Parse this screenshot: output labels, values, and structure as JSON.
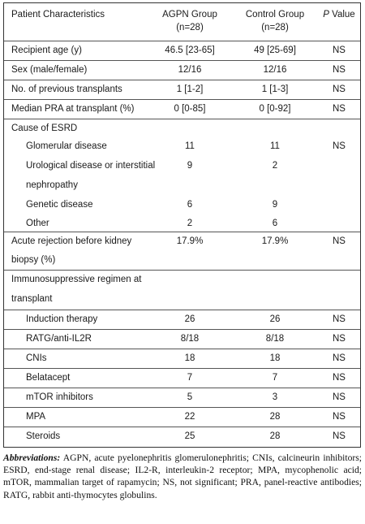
{
  "header": {
    "col0": "Patient Characteristics",
    "col1_line1": "AGPN Group",
    "col1_line2": "(n=28)",
    "col2_line1": "Control Group",
    "col2_line2": "(n=28)",
    "col3_italic": "P",
    "col3_rest": " Value"
  },
  "rows": [
    {
      "c0": "Recipient age (y)",
      "c1": "46.5 [23-65]",
      "c2": "49 [25-69]",
      "c3": "NS"
    },
    {
      "c0": "Sex (male/female)",
      "c1": "12/16",
      "c2": "12/16",
      "c3": "NS"
    },
    {
      "c0": "No. of previous transplants",
      "c1": "1 [1-2]",
      "c2": "1 [1-3]",
      "c3": "NS"
    },
    {
      "c0": "Median PRA at transplant (%)",
      "c1": "0 [0-85]",
      "c2": "0 [0-92]",
      "c3": "NS"
    },
    {
      "c0": "Cause of ESRD",
      "c1": "",
      "c2": "",
      "c3": ""
    },
    {
      "c0": "Glomerular disease",
      "c1": "11",
      "c2": "11",
      "c3": "NS"
    },
    {
      "c0a": "Urological disease or interstitial",
      "c0b": "nephropathy",
      "c1": "9",
      "c2": "2",
      "c3": ""
    },
    {
      "c0": "Genetic disease",
      "c1": "6",
      "c2": "9",
      "c3": ""
    },
    {
      "c0": "Other",
      "c1": "2",
      "c2": "6",
      "c3": ""
    },
    {
      "c0a": "Acute rejection before kidney",
      "c0b": "biopsy (%)",
      "c1": "17.9%",
      "c2": "17.9%",
      "c3": "NS"
    },
    {
      "c0a": "Immunosuppressive regimen at",
      "c0b": "transplant",
      "c1": "",
      "c2": "",
      "c3": ""
    },
    {
      "c0": "Induction therapy",
      "c1": "26",
      "c2": "26",
      "c3": "NS"
    },
    {
      "c0": "RATG/anti-IL2R",
      "c1": "8/18",
      "c2": "8/18",
      "c3": "NS"
    },
    {
      "c0": "CNIs",
      "c1": "18",
      "c2": "18",
      "c3": "NS"
    },
    {
      "c0": "Belatacept",
      "c1": "7",
      "c2": "7",
      "c3": "NS"
    },
    {
      "c0": "mTOR inhibitors",
      "c1": "5",
      "c2": "3",
      "c3": "NS"
    },
    {
      "c0": "MPA",
      "c1": "22",
      "c2": "28",
      "c3": "NS"
    },
    {
      "c0": "Steroids",
      "c1": "25",
      "c2": "28",
      "c3": "NS"
    }
  ],
  "footnote": {
    "label": "Abbreviations:",
    "text": " AGPN, acute pyelonephritis glomerulonephritis; CNIs, calcineurin inhibitors; ESRD, end-stage renal disease; IL2-R, interleukin-2 receptor; MPA, mycophenolic acid; mTOR, mammalian target of rapamycin; NS, not significant; PRA, panel-reactive antibodies; RATG, rabbit anti-thymocytes globulins."
  }
}
